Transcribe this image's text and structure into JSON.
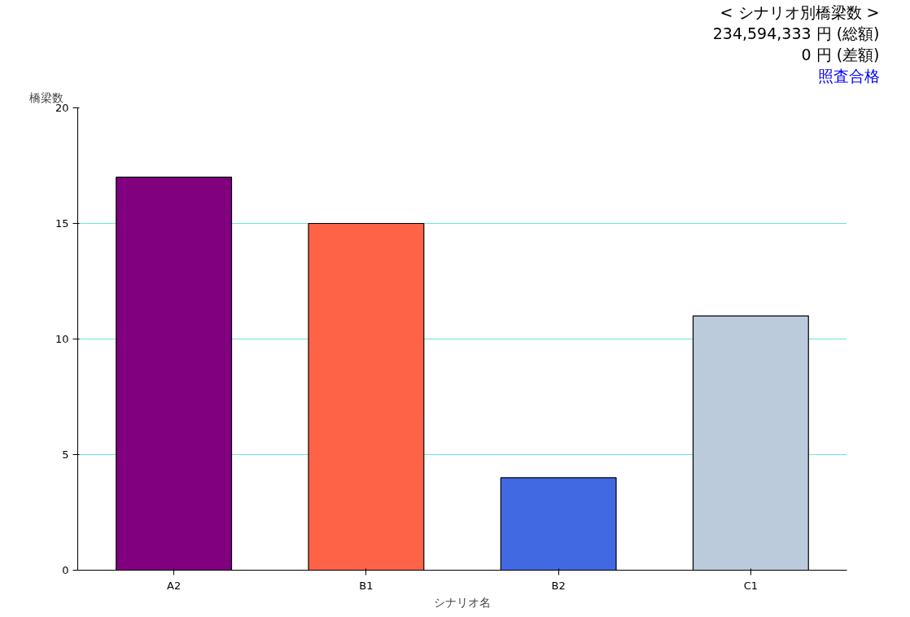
{
  "chart_data": {
    "type": "bar",
    "xlabel": "シナリオ名",
    "ylabel": "橋梁数",
    "categories": [
      "A2",
      "B1",
      "B2",
      "C1"
    ],
    "values": [
      17,
      15,
      4,
      11
    ],
    "colors": [
      "#800080",
      "#ff6347",
      "#4169e1",
      "#bccbdc"
    ],
    "ylim": [
      0,
      20
    ],
    "yticks": [
      0,
      5,
      10,
      15,
      20
    ],
    "grid": "y",
    "annotations": [
      "< シナリオ別橋梁数 >",
      "234,594,333 円 (総額)",
      "0 円 (差額)",
      "照査合格"
    ]
  }
}
